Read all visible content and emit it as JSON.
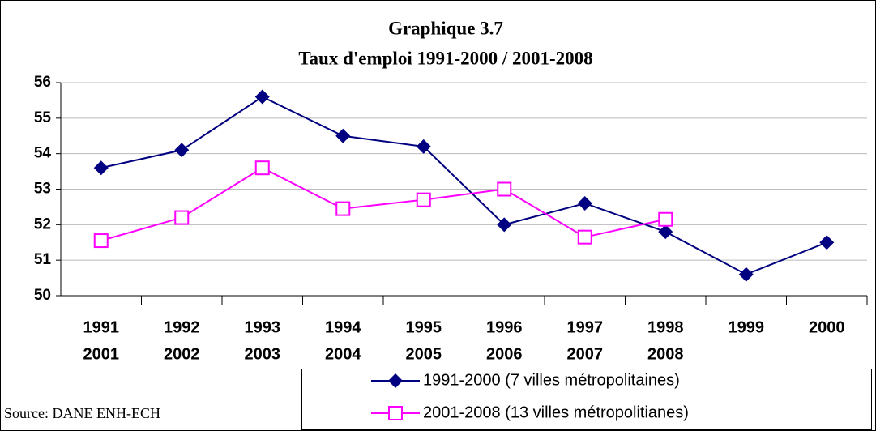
{
  "chart_data": {
    "type": "line",
    "title": [
      "Graphique 3.7",
      "Taux d'emploi 1991-2000 / 2001-2008"
    ],
    "categories": [
      [
        "1991",
        "2001"
      ],
      [
        "1992",
        "2002"
      ],
      [
        "1993",
        "2003"
      ],
      [
        "1994",
        "2004"
      ],
      [
        "1995",
        "2005"
      ],
      [
        "1996",
        "2006"
      ],
      [
        "1997",
        "2007"
      ],
      [
        "1998",
        "2008"
      ],
      [
        "1999"
      ],
      [
        "2000"
      ]
    ],
    "series": [
      {
        "name": "1991-2000 (7 villes métropolitaines)",
        "color": "#000080",
        "marker": "diamond",
        "values": [
          53.6,
          54.1,
          55.6,
          54.5,
          54.2,
          52.0,
          52.6,
          51.8,
          50.6,
          51.5
        ]
      },
      {
        "name": "2001-2008 (13 villes métropolitianes)",
        "color": "#ff00ff",
        "marker": "square",
        "values": [
          51.55,
          52.2,
          53.6,
          52.45,
          52.7,
          53.0,
          51.65,
          52.15,
          null,
          null
        ]
      }
    ],
    "ylim": [
      50,
      56
    ],
    "yticks": [
      50,
      51,
      52,
      53,
      54,
      55,
      56
    ],
    "grid": true,
    "source": "Source: DANE ENH-ECH"
  }
}
